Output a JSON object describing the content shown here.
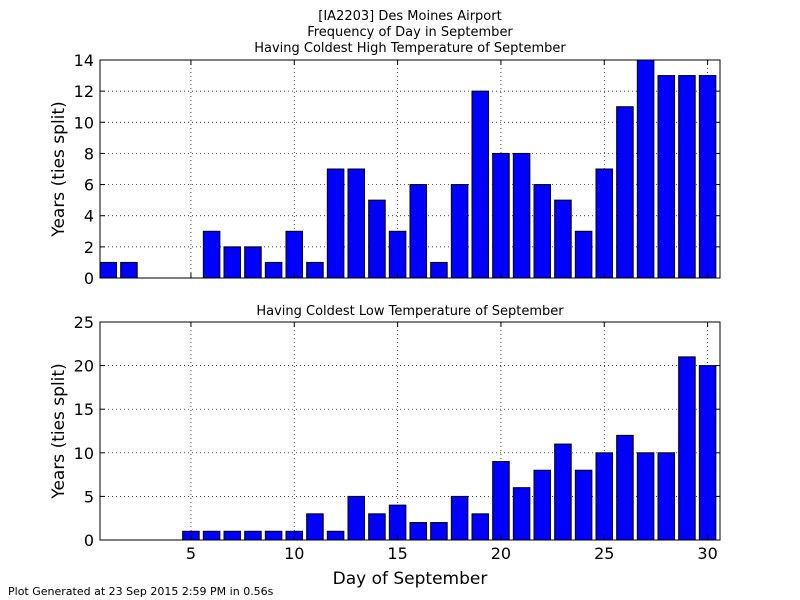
{
  "figure": {
    "title_lines": [
      "[IA2203] Des Moines Airport",
      "Frequency of Day in September",
      "Having Coldest High Temperature of September"
    ],
    "xlabel": "Day of September",
    "footer": "Plot Generated at 23 Sep 2015 2:59 PM in 0.56s"
  },
  "colors": {
    "bar_fill": "#0000ff",
    "bar_edge": "#000000",
    "grid": "#000000"
  },
  "chart_data": [
    {
      "type": "bar",
      "title": "Having Coldest High Temperature of September",
      "xlabel": "",
      "ylabel": "Years (ties split)",
      "x": [
        1,
        2,
        3,
        4,
        5,
        6,
        7,
        8,
        9,
        10,
        11,
        12,
        13,
        14,
        15,
        16,
        17,
        18,
        19,
        20,
        21,
        22,
        23,
        24,
        25,
        26,
        27,
        28,
        29,
        30
      ],
      "values": [
        1,
        1,
        0,
        0,
        0,
        3,
        2,
        2,
        1,
        3,
        1,
        7,
        7,
        5,
        3,
        6,
        1,
        6,
        12,
        8,
        8,
        6,
        5,
        3,
        7,
        11,
        14,
        13,
        13,
        13
      ],
      "xlim": [
        0.6,
        30.6
      ],
      "ylim": [
        0,
        14
      ],
      "xticks": [
        5,
        10,
        15,
        20,
        25,
        30
      ],
      "yticks": [
        0,
        2,
        4,
        6,
        8,
        10,
        12,
        14
      ],
      "show_xtick_labels": false,
      "grid": true
    },
    {
      "type": "bar",
      "title": "Having Coldest Low Temperature of September",
      "xlabel": "Day of September",
      "ylabel": "Years (ties split)",
      "x": [
        1,
        2,
        3,
        4,
        5,
        6,
        7,
        8,
        9,
        10,
        11,
        12,
        13,
        14,
        15,
        16,
        17,
        18,
        19,
        20,
        21,
        22,
        23,
        24,
        25,
        26,
        27,
        28,
        29,
        30
      ],
      "values": [
        0,
        0,
        0,
        0,
        1,
        1,
        1,
        1,
        1,
        1,
        3,
        1,
        5,
        3,
        4,
        2,
        2,
        5,
        3,
        9,
        6,
        8,
        11,
        8,
        10,
        12,
        10,
        10,
        21,
        20
      ],
      "xlim": [
        0.6,
        30.6
      ],
      "ylim": [
        0,
        25
      ],
      "xticks": [
        5,
        10,
        15,
        20,
        25,
        30
      ],
      "yticks": [
        0,
        5,
        10,
        15,
        20,
        25
      ],
      "show_xtick_labels": true,
      "grid": true
    }
  ]
}
